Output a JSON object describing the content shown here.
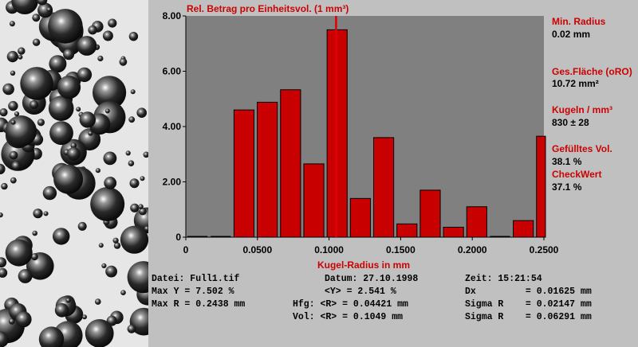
{
  "colors": {
    "plot_bg": "#808080",
    "bar": "#c80000",
    "accent": "#cc0000",
    "panel": "#c0c0c0"
  },
  "chart_data": {
    "type": "bar",
    "title": "Rel. Betrag pro Einheitsvol. (1 mm³)",
    "xlabel": "Kugel-Radius in mm",
    "ylabel": "",
    "xlim": [
      0,
      0.25
    ],
    "ylim": [
      0,
      8
    ],
    "bin_width": 0.01625,
    "x": [
      0.00813,
      0.02438,
      0.04063,
      0.05688,
      0.07313,
      0.08938,
      0.10563,
      0.12188,
      0.13813,
      0.15438,
      0.17063,
      0.18688,
      0.20313,
      0.21938,
      0.23563,
      0.25188
    ],
    "values": [
      0.0,
      0.0,
      4.6,
      4.88,
      5.33,
      2.65,
      7.5,
      1.4,
      3.6,
      0.48,
      1.7,
      0.36,
      1.1,
      0.0,
      0.6,
      3.65
    ],
    "xticks": [
      "0",
      "0.0500",
      "0.1000",
      "0.1500",
      "0.2000",
      "0.2500"
    ],
    "xtick_values": [
      0,
      0.05,
      0.1,
      0.15,
      0.2,
      0.25
    ],
    "yticks": [
      "0",
      "2.00",
      "4.00",
      "6.00",
      "8.00"
    ],
    "ytick_values": [
      0,
      2,
      4,
      6,
      8
    ],
    "marker_line_x": 0.1049,
    "grid": false
  },
  "side": {
    "min_radius_label": "Min. Radius",
    "min_radius_value": "0.02 mm",
    "surface_label": "Ges.Fläche (oRO)",
    "surface_value": "10.72 mm²",
    "spheres_label": "Kugeln / mm³",
    "spheres_value": "830 ± 28",
    "filled_label": "Gefülltes Vol.",
    "filled_value": "38.1 %",
    "check_label": "CheckWert",
    "check_value": "37.1 %"
  },
  "info": {
    "datei": "Datei: Full1.tif",
    "max_y": "Max Y = 7.502 %",
    "max_r": "Max R = 0.2438 mm",
    "datum": "Datum: 27.10.1998",
    "mean_y": "<Y> = 2.541 %",
    "hfg": "Hfg: <R> = 0.04421 mm",
    "vol": "Vol: <R> = 0.1049 mm",
    "zeit": "Zeit: 15:21:54",
    "dx": "Dx         = 0.01625 mm",
    "sigma1": "Sigma R    = 0.02147 mm",
    "sigma2": "Sigma R    = 0.06291 mm"
  }
}
